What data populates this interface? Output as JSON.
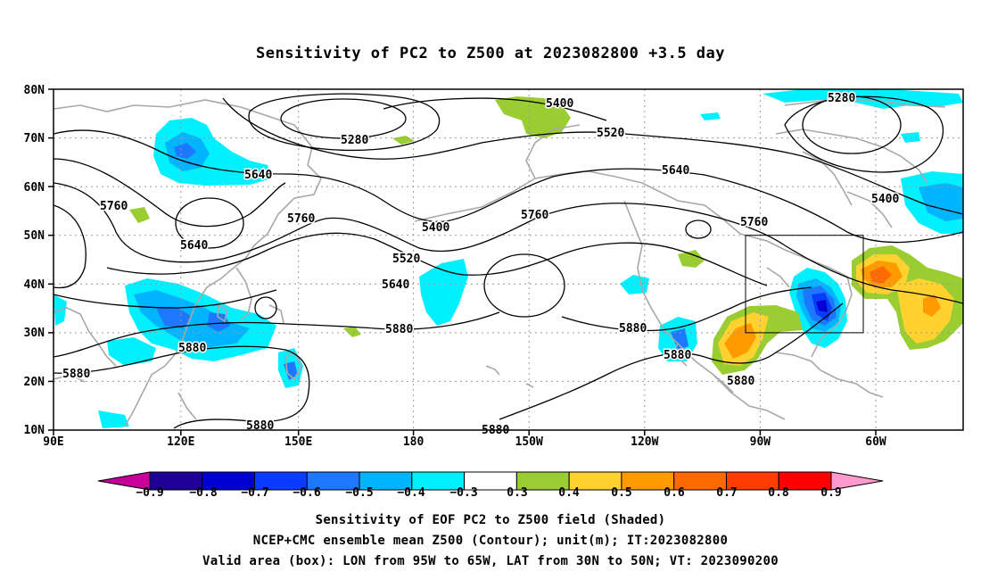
{
  "title": "Sensitivity of PC2 to Z500 at 2023082800 +3.5 day",
  "axes": {
    "lat_labels": [
      "10N",
      "20N",
      "30N",
      "40N",
      "50N",
      "60N",
      "70N",
      "80N"
    ],
    "lon_labels": [
      "90E",
      "120E",
      "150E",
      "180",
      "150W",
      "120W",
      "90W",
      "60W"
    ]
  },
  "contour_labels": [
    {
      "text": "5280"
    },
    {
      "text": "5280"
    },
    {
      "text": "5400"
    },
    {
      "text": "5400"
    },
    {
      "text": "5400"
    },
    {
      "text": "5520"
    },
    {
      "text": "5520"
    },
    {
      "text": "5640"
    },
    {
      "text": "5640"
    },
    {
      "text": "5640"
    },
    {
      "text": "5640"
    },
    {
      "text": "5760"
    },
    {
      "text": "5760"
    },
    {
      "text": "5760"
    },
    {
      "text": "5760"
    },
    {
      "text": "5880"
    },
    {
      "text": "5880"
    },
    {
      "text": "5880"
    },
    {
      "text": "5880"
    },
    {
      "text": "5880"
    },
    {
      "text": "5880"
    },
    {
      "text": "5880"
    },
    {
      "text": "5880"
    }
  ],
  "colorbar": {
    "labels": [
      "−0.9",
      "−0.8",
      "−0.7",
      "−0.6",
      "−0.5",
      "−0.4",
      "−0.3",
      "0.3",
      "0.4",
      "0.5",
      "0.6",
      "0.7",
      "0.8",
      "0.9"
    ],
    "colors": [
      "#1e0096",
      "#0000d2",
      "#0a3cff",
      "#1e78ff",
      "#00b4ff",
      "#00f0ff",
      "#ffffff",
      "#9acd32",
      "#ffd230",
      "#ff9a00",
      "#ff6a00",
      "#ff3c00",
      "#ff0000"
    ],
    "left_tip_color": "#c8009a",
    "right_tip_color": "#ff9acd"
  },
  "footer": {
    "line1": "Sensitivity of EOF PC2 to Z500 field (Shaded)",
    "line2": "NCEP+CMC ensemble mean Z500 (Contour); unit(m); IT:2023082800",
    "line3": "Valid area (box): LON from 95W to 65W, LAT from 30N to 50N; VT: 2023090200"
  }
}
